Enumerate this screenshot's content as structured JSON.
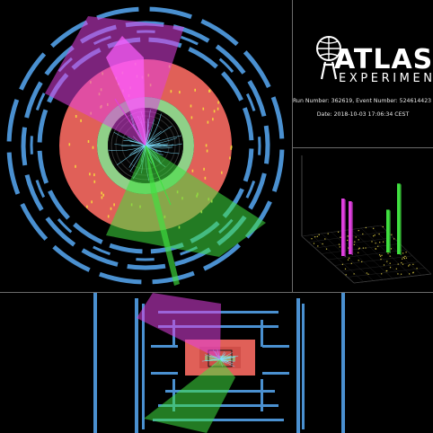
{
  "experiment": {
    "name": "ATLAS",
    "subtitle": "EXPERIMENT"
  },
  "event_info": {
    "run_line": "Run Number: 362619, Event Number: 524614423",
    "date_line": "Date: 2018-10-03 17:06:34 CEST"
  },
  "views": {
    "transverse": "transverse-view",
    "longitudinal": "longitudinal-view",
    "lego": "lego-plot"
  },
  "colors": {
    "background": "#000000",
    "muon_chambers": "#4a90d0",
    "calorimeter_outer": "#e06058",
    "calorimeter_inner": "#8fd088",
    "jet_magenta": "#e040e0",
    "jet_green": "#40e040",
    "tracks": "#7fe0ff",
    "divider": "#6a6a6a"
  },
  "lego_towers": [
    {
      "color": "magenta",
      "height": 0.78
    },
    {
      "color": "magenta",
      "height": 0.72
    },
    {
      "color": "green",
      "height": 0.58
    },
    {
      "color": "green",
      "height": 0.96
    }
  ]
}
